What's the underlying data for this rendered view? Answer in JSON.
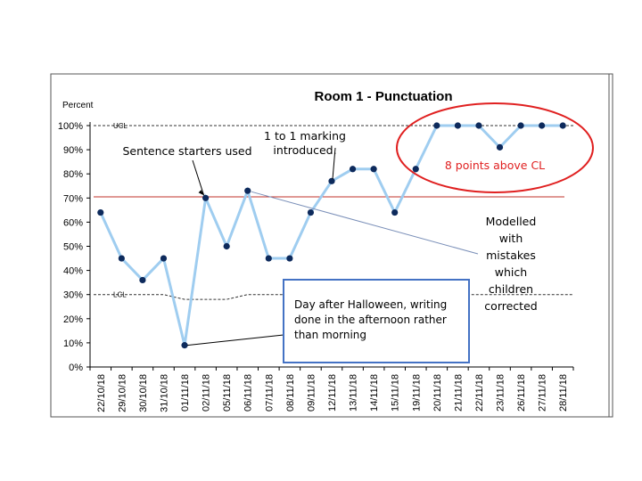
{
  "chart_data": {
    "type": "line",
    "title": "Room 1 - Punctuation",
    "ylabel": "Percent",
    "xlabel": "",
    "ylim": [
      0,
      100
    ],
    "y_ticks": [
      "0%",
      "10%",
      "20%",
      "30%",
      "40%",
      "50%",
      "60%",
      "70%",
      "80%",
      "90%",
      "100%"
    ],
    "categories": [
      "22/10/18",
      "29/10/18",
      "30/10/18",
      "31/10/18",
      "01/11/18",
      "02/11/18",
      "05/11/18",
      "06/11/18",
      "07/11/18",
      "08/11/18",
      "09/11/18",
      "12/11/18",
      "13/11/18",
      "14/11/18",
      "15/11/18",
      "19/11/18",
      "20/11/18",
      "21/11/18",
      "22/11/18",
      "23/11/18",
      "26/11/18",
      "27/11/18",
      "28/11/18"
    ],
    "series": [
      {
        "values": [
          64,
          45,
          36,
          45,
          9,
          70,
          50,
          73,
          45,
          45,
          64,
          77,
          82,
          82,
          64,
          82,
          100,
          100,
          100,
          91,
          100,
          100,
          100
        ]
      }
    ],
    "center_line": 70.5,
    "ucl_label": "UCL",
    "ucl_value": 100,
    "lcl_label": "LCL",
    "lcl_values": [
      30,
      30,
      30,
      30,
      28,
      28,
      28,
      30,
      30,
      30,
      30,
      30,
      30,
      30,
      30,
      30,
      30,
      30,
      30,
      30,
      30,
      30,
      30
    ],
    "grid": false,
    "colors": {
      "series_line": "#9fcdf0",
      "point": "#0d2a5c",
      "center_line": "#c0302a",
      "limit_line": "#333333",
      "ellipse": "#e02020",
      "callout_border": "#4472c4",
      "annotation_line": "#7a8fb8"
    },
    "annotations": {
      "sentence_starters": "Sentence starters used",
      "marking": [
        "1 to 1 marking",
        "introduced."
      ],
      "above_cl": "8 points above CL",
      "modelled": [
        "Modelled",
        "with",
        "mistakes",
        "which",
        "children",
        "corrected"
      ],
      "halloween": [
        "Day after Halloween, writing",
        "done in the afternoon rather",
        "than morning"
      ]
    }
  }
}
